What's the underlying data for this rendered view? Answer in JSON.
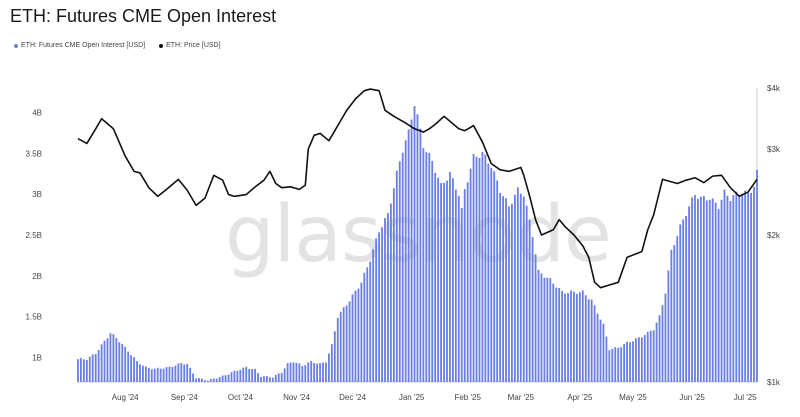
{
  "title": "ETH: Futures CME Open Interest",
  "watermark": "glassnode",
  "colors": {
    "bars": "#6b7fe0",
    "price": "#111111",
    "axis": "#cccccc",
    "background": "#ffffff"
  },
  "chart_data": {
    "type": "bar",
    "title": "ETH: Futures CME Open Interest",
    "legend": {
      "placement": "top-left"
    },
    "grid": false,
    "x_ticks": [
      "Aug '24",
      "Sep '24",
      "Oct '24",
      "Nov '24",
      "Dec '24",
      "Jan '25",
      "Feb '25",
      "Mar '25",
      "Apr '25",
      "May '25",
      "Jun '25",
      "Jul '25"
    ],
    "left_axis": {
      "ticks": [
        "1B",
        "1.5B",
        "2B",
        "2.5B",
        "3B",
        "3.5B",
        "4B"
      ],
      "ylim": [
        0.7,
        4.3
      ],
      "unit": "B"
    },
    "right_axis": {
      "ticks": [
        "$1k",
        "$2k",
        "$3k",
        "$4k"
      ],
      "scale": "log",
      "ylim": [
        1000,
        4000
      ]
    },
    "series": [
      {
        "name": "ETH: Futures CME Open Interest [USD]",
        "kind": "bar",
        "points": [
          [
            0,
            0.98
          ],
          [
            3,
            0.98
          ],
          [
            6,
            1.05
          ],
          [
            9,
            1.2
          ],
          [
            11,
            1.3
          ],
          [
            13,
            1.24
          ],
          [
            17,
            1.08
          ],
          [
            20,
            0.95
          ],
          [
            23,
            0.88
          ],
          [
            26,
            0.86
          ],
          [
            31,
            0.88
          ],
          [
            35,
            0.93
          ],
          [
            37,
            0.92
          ],
          [
            40,
            0.75
          ],
          [
            44,
            0.72
          ],
          [
            49,
            0.77
          ],
          [
            53,
            0.83
          ],
          [
            57,
            0.88
          ],
          [
            60,
            0.85
          ],
          [
            62,
            0.77
          ],
          [
            66,
            0.76
          ],
          [
            69,
            0.82
          ],
          [
            71,
            0.92
          ],
          [
            73,
            0.95
          ],
          [
            76,
            0.9
          ],
          [
            79,
            0.95
          ],
          [
            82,
            0.92
          ],
          [
            84,
            0.95
          ],
          [
            86,
            1.15
          ],
          [
            88,
            1.5
          ],
          [
            92,
            1.7
          ],
          [
            96,
            1.92
          ],
          [
            99,
            2.2
          ],
          [
            102,
            2.55
          ],
          [
            105,
            2.75
          ],
          [
            108,
            3.25
          ],
          [
            110,
            3.55
          ],
          [
            112,
            3.75
          ],
          [
            114,
            4.12
          ],
          [
            117,
            3.6
          ],
          [
            120,
            3.4
          ],
          [
            123,
            3.1
          ],
          [
            126,
            3.25
          ],
          [
            129,
            3.0
          ],
          [
            130,
            2.8
          ],
          [
            131,
            3.05
          ],
          [
            134,
            3.45
          ],
          [
            137,
            3.5
          ],
          [
            140,
            3.35
          ],
          [
            143,
            3.05
          ],
          [
            146,
            2.85
          ],
          [
            149,
            3.05
          ],
          [
            151,
            3.0
          ],
          [
            154,
            2.5
          ],
          [
            156,
            2.05
          ],
          [
            160,
            1.95
          ],
          [
            164,
            1.8
          ],
          [
            168,
            1.8
          ],
          [
            171,
            1.8
          ],
          [
            174,
            1.7
          ],
          [
            176,
            1.55
          ],
          [
            178,
            1.4
          ],
          [
            180,
            1.1
          ],
          [
            183,
            1.12
          ],
          [
            186,
            1.18
          ],
          [
            190,
            1.24
          ],
          [
            193,
            1.3
          ],
          [
            195,
            1.35
          ],
          [
            197,
            1.5
          ],
          [
            199,
            1.8
          ],
          [
            201,
            2.3
          ],
          [
            204,
            2.6
          ],
          [
            207,
            2.85
          ],
          [
            209,
            3.0
          ],
          [
            211,
            2.95
          ],
          [
            214,
            2.95
          ],
          [
            217,
            2.85
          ],
          [
            219,
            3.02
          ],
          [
            221,
            2.95
          ],
          [
            223,
            3.0
          ],
          [
            225,
            3.03
          ],
          [
            227,
            3.0
          ],
          [
            229,
            3.1
          ],
          [
            230,
            3.26
          ]
        ]
      },
      {
        "name": "ETH: Price [USD]",
        "kind": "line",
        "axis": "right",
        "points": [
          [
            0,
            3150
          ],
          [
            3,
            3080
          ],
          [
            6,
            3300
          ],
          [
            8,
            3460
          ],
          [
            10,
            3380
          ],
          [
            12,
            3300
          ],
          [
            16,
            2900
          ],
          [
            19,
            2700
          ],
          [
            21,
            2680
          ],
          [
            24,
            2500
          ],
          [
            27,
            2400
          ],
          [
            30,
            2480
          ],
          [
            34,
            2600
          ],
          [
            37,
            2470
          ],
          [
            40,
            2300
          ],
          [
            43,
            2380
          ],
          [
            46,
            2650
          ],
          [
            49,
            2590
          ],
          [
            51,
            2420
          ],
          [
            53,
            2400
          ],
          [
            57,
            2420
          ],
          [
            60,
            2510
          ],
          [
            63,
            2590
          ],
          [
            65,
            2700
          ],
          [
            67,
            2550
          ],
          [
            69,
            2500
          ],
          [
            72,
            2510
          ],
          [
            75,
            2480
          ],
          [
            77,
            2530
          ],
          [
            78,
            3000
          ],
          [
            80,
            3200
          ],
          [
            82,
            3230
          ],
          [
            85,
            3120
          ],
          [
            88,
            3350
          ],
          [
            91,
            3600
          ],
          [
            94,
            3800
          ],
          [
            97,
            3950
          ],
          [
            99,
            3980
          ],
          [
            102,
            3950
          ],
          [
            104,
            3600
          ],
          [
            107,
            3500
          ],
          [
            111,
            3390
          ],
          [
            114,
            3300
          ],
          [
            117,
            3250
          ],
          [
            119,
            3300
          ],
          [
            121,
            3370
          ],
          [
            124,
            3500
          ],
          [
            127,
            3380
          ],
          [
            129,
            3300
          ],
          [
            131,
            3270
          ],
          [
            134,
            3350
          ],
          [
            137,
            3100
          ],
          [
            140,
            2800
          ],
          [
            143,
            2720
          ],
          [
            146,
            2700
          ],
          [
            150,
            2750
          ],
          [
            151,
            2650
          ],
          [
            153,
            2400
          ],
          [
            155,
            2150
          ],
          [
            157,
            2000
          ],
          [
            161,
            2050
          ],
          [
            163,
            2150
          ],
          [
            165,
            2080
          ],
          [
            168,
            2000
          ],
          [
            171,
            1900
          ],
          [
            173,
            1800
          ],
          [
            175,
            1600
          ],
          [
            177,
            1560
          ],
          [
            180,
            1580
          ],
          [
            183,
            1600
          ],
          [
            186,
            1800
          ],
          [
            189,
            1830
          ],
          [
            191,
            1850
          ],
          [
            193,
            2050
          ],
          [
            195,
            2200
          ],
          [
            198,
            2600
          ],
          [
            200,
            2580
          ],
          [
            203,
            2550
          ],
          [
            206,
            2590
          ],
          [
            209,
            2620
          ],
          [
            212,
            2560
          ],
          [
            215,
            2640
          ],
          [
            218,
            2650
          ],
          [
            221,
            2500
          ],
          [
            224,
            2400
          ],
          [
            227,
            2450
          ],
          [
            230,
            2600
          ]
        ]
      }
    ]
  }
}
